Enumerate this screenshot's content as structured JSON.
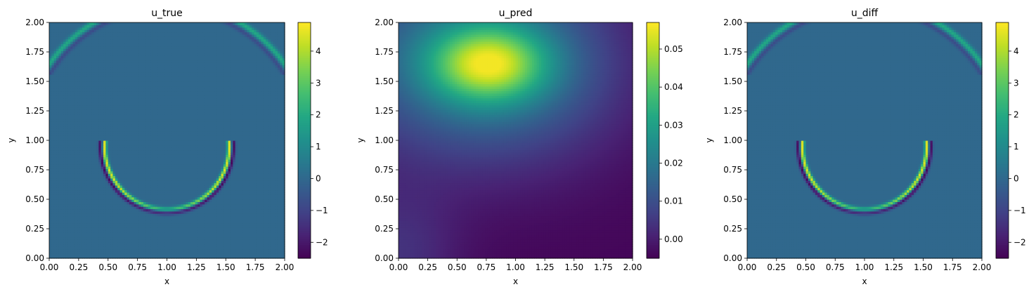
{
  "chart_data": [
    {
      "type": "heatmap",
      "title": "u_true",
      "xlabel": "x",
      "ylabel": "y",
      "xlim": [
        0,
        2
      ],
      "ylim": [
        0,
        2
      ],
      "xticks": [
        "0.00",
        "0.25",
        "0.50",
        "0.75",
        "1.00",
        "1.25",
        "1.50",
        "1.75",
        "2.00"
      ],
      "yticks": [
        "0.00",
        "0.25",
        "0.50",
        "0.75",
        "1.00",
        "1.25",
        "1.50",
        "1.75",
        "2.00"
      ],
      "colorbar": {
        "range": [
          -2.5,
          4.9
        ],
        "ticks": [
          -2,
          -1,
          0,
          1,
          2,
          3,
          4
        ],
        "tick_labels": [
          "−2",
          "−1",
          "0",
          "1",
          "2",
          "3",
          "4"
        ]
      },
      "colormap": "viridis",
      "field": {
        "background": 0.0,
        "lower_ring_center": [
          1.0,
          0.95
        ],
        "lower_ring_radius": 0.53,
        "lower_ring_peak": 4.5,
        "upper_ring_center": [
          1.0,
          0.95
        ],
        "upper_ring_radius": 1.22,
        "upper_ring_peak": 2.0
      }
    },
    {
      "type": "heatmap",
      "title": "u_pred",
      "xlabel": "x",
      "ylabel": "y",
      "xlim": [
        0,
        2
      ],
      "ylim": [
        0,
        2
      ],
      "xticks": [
        "0.00",
        "0.25",
        "0.50",
        "0.75",
        "1.00",
        "1.25",
        "1.50",
        "1.75",
        "2.00"
      ],
      "yticks": [
        "0.00",
        "0.25",
        "0.50",
        "0.75",
        "1.00",
        "1.25",
        "1.50",
        "1.75",
        "2.00"
      ],
      "colorbar": {
        "range": [
          -0.005,
          0.057
        ],
        "ticks": [
          0.0,
          0.01,
          0.02,
          0.03,
          0.04,
          0.05
        ],
        "tick_labels": [
          "0.00",
          "0.01",
          "0.02",
          "0.03",
          "0.04",
          "0.05"
        ]
      },
      "colormap": "viridis",
      "field": {
        "peak_center": [
          0.77,
          1.65
        ],
        "peak_value": 0.056,
        "min_value": -0.004
      }
    },
    {
      "type": "heatmap",
      "title": "u_diff",
      "xlabel": "x",
      "ylabel": "y",
      "xlim": [
        0,
        2
      ],
      "ylim": [
        0,
        2
      ],
      "xticks": [
        "0.00",
        "0.25",
        "0.50",
        "0.75",
        "1.00",
        "1.25",
        "1.50",
        "1.75",
        "2.00"
      ],
      "yticks": [
        "0.00",
        "0.25",
        "0.50",
        "0.75",
        "1.00",
        "1.25",
        "1.50",
        "1.75",
        "2.00"
      ],
      "colorbar": {
        "range": [
          -2.5,
          4.9
        ],
        "ticks": [
          -2,
          -1,
          0,
          1,
          2,
          3,
          4
        ],
        "tick_labels": [
          "−2",
          "−1",
          "0",
          "1",
          "2",
          "3",
          "4"
        ]
      },
      "colormap": "viridis",
      "field": {
        "background": 0.0,
        "lower_ring_center": [
          1.0,
          0.95
        ],
        "lower_ring_radius": 0.53,
        "lower_ring_peak": 4.5,
        "upper_ring_center": [
          1.0,
          0.95
        ],
        "upper_ring_radius": 1.22,
        "upper_ring_peak": 2.0
      }
    }
  ]
}
